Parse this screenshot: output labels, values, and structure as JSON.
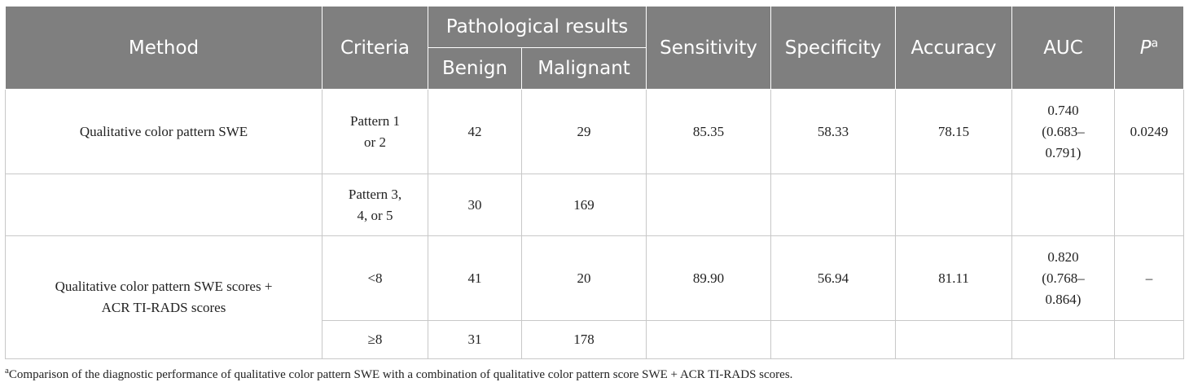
{
  "table": {
    "headers": {
      "method": "Method",
      "criteria": "Criteria",
      "pathological": "Pathological results",
      "benign": "Benign",
      "malignant": "Malignant",
      "sensitivity": "Sensitivity",
      "specificity": "Specificity",
      "accuracy": "Accuracy",
      "auc": "AUC",
      "p": "P",
      "p_sup": "a"
    },
    "rows": [
      {
        "method": "Qualitative color pattern SWE",
        "criteria": [
          "Pattern 1",
          "or 2"
        ],
        "benign": "42",
        "malignant": "29",
        "sensitivity": "85.35",
        "specificity": "58.33",
        "accuracy": "78.15",
        "auc": [
          "0.740",
          "(0.683–",
          "0.791)"
        ],
        "p": "0.0249"
      },
      {
        "method": "",
        "criteria": [
          "Pattern 3,",
          "4, or 5"
        ],
        "benign": "30",
        "malignant": "169",
        "sensitivity": "",
        "specificity": "",
        "accuracy": "",
        "auc": [
          "",
          "",
          ""
        ],
        "p": ""
      },
      {
        "method": [
          "Qualitative color pattern SWE scores +",
          "ACR TI-RADS scores"
        ],
        "criteria": "<8",
        "benign": "41",
        "malignant": "20",
        "sensitivity": "89.90",
        "specificity": "56.94",
        "accuracy": "81.11",
        "auc": [
          "0.820",
          "(0.768–",
          "0.864)"
        ],
        "p": "–"
      },
      {
        "criteria": "≥8",
        "benign": "31",
        "malignant": "178"
      }
    ]
  },
  "footnote": {
    "marker": "a",
    "text": "Comparison of the diagnostic performance of qualitative color pattern SWE with a combination of qualitative color pattern score SWE + ACR TI-RADS scores."
  },
  "colors": {
    "header_bg": "#7f7f7f",
    "header_text": "#ffffff",
    "grid": "#c8c8c8"
  }
}
